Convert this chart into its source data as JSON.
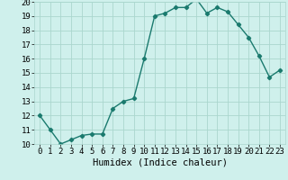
{
  "xlabel": "Humidex (Indice chaleur)",
  "ylabel": "",
  "x": [
    0,
    1,
    2,
    3,
    4,
    5,
    6,
    7,
    8,
    9,
    10,
    11,
    12,
    13,
    14,
    15,
    16,
    17,
    18,
    19,
    20,
    21,
    22,
    23
  ],
  "y": [
    12,
    11,
    10,
    10.3,
    10.6,
    10.7,
    10.7,
    12.5,
    13.0,
    13.2,
    16.0,
    19.0,
    19.2,
    19.6,
    19.6,
    20.2,
    19.2,
    19.6,
    19.3,
    18.4,
    17.5,
    16.2,
    14.7,
    15.2
  ],
  "line_color": "#1a7a6e",
  "marker": "D",
  "marker_size": 2.2,
  "line_width": 1.0,
  "bg_color": "#cff0ec",
  "grid_color": "#aad6ce",
  "ylim": [
    10,
    20
  ],
  "xlim": [
    -0.5,
    23.5
  ],
  "yticks": [
    10,
    11,
    12,
    13,
    14,
    15,
    16,
    17,
    18,
    19,
    20
  ],
  "xticks": [
    0,
    1,
    2,
    3,
    4,
    5,
    6,
    7,
    8,
    9,
    10,
    11,
    12,
    13,
    14,
    15,
    16,
    17,
    18,
    19,
    20,
    21,
    22,
    23
  ],
  "xlabel_fontsize": 7.5,
  "tick_fontsize": 6.5
}
